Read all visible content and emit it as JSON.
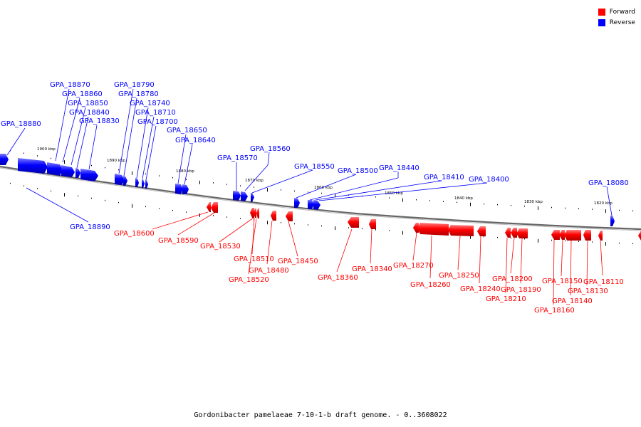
{
  "legend": {
    "forward_label": "Forward",
    "reverse_label": "Reverse",
    "forward_color": "#ff0000",
    "reverse_color": "#0000ff"
  },
  "caption": "Gordonibacter pamelaeae 7-10-1-b draft genome. - 0..3608022",
  "ticks": [
    "1900 kbp",
    "1890 kbp",
    "1880 kbp",
    "1870 kbp",
    "1860 kbp",
    "1850 kbp",
    "1840 kbp",
    "1830 kbp",
    "1820 kbp"
  ],
  "reverse_genes": [
    "GPA_18880",
    "GPA_18870",
    "GPA_18860",
    "GPA_18850",
    "GPA_18840",
    "GPA_18830",
    "GPA_18790",
    "GPA_18780",
    "GPA_18740",
    "GPA_18710",
    "GPA_18700",
    "GPA_18650",
    "GPA_18640",
    "GPA_18570",
    "GPA_18560",
    "GPA_18550",
    "GPA_18500",
    "GPA_18440",
    "GPA_18410",
    "GPA_18400",
    "GPA_18080",
    "GPA_18890"
  ],
  "forward_genes": [
    "GPA_18600",
    "GPA_18590",
    "GPA_18530",
    "GPA_18510",
    "GPA_18520",
    "GPA_18480",
    "GPA_18450",
    "GPA_18360",
    "GPA_18340",
    "GPA_18270",
    "GPA_18260",
    "GPA_18250",
    "GPA_18240",
    "GPA_18200",
    "GPA_18210",
    "GPA_18190",
    "GPA_18150",
    "GPA_18160",
    "GPA_18140",
    "GPA_18130",
    "GPA_18110"
  ]
}
